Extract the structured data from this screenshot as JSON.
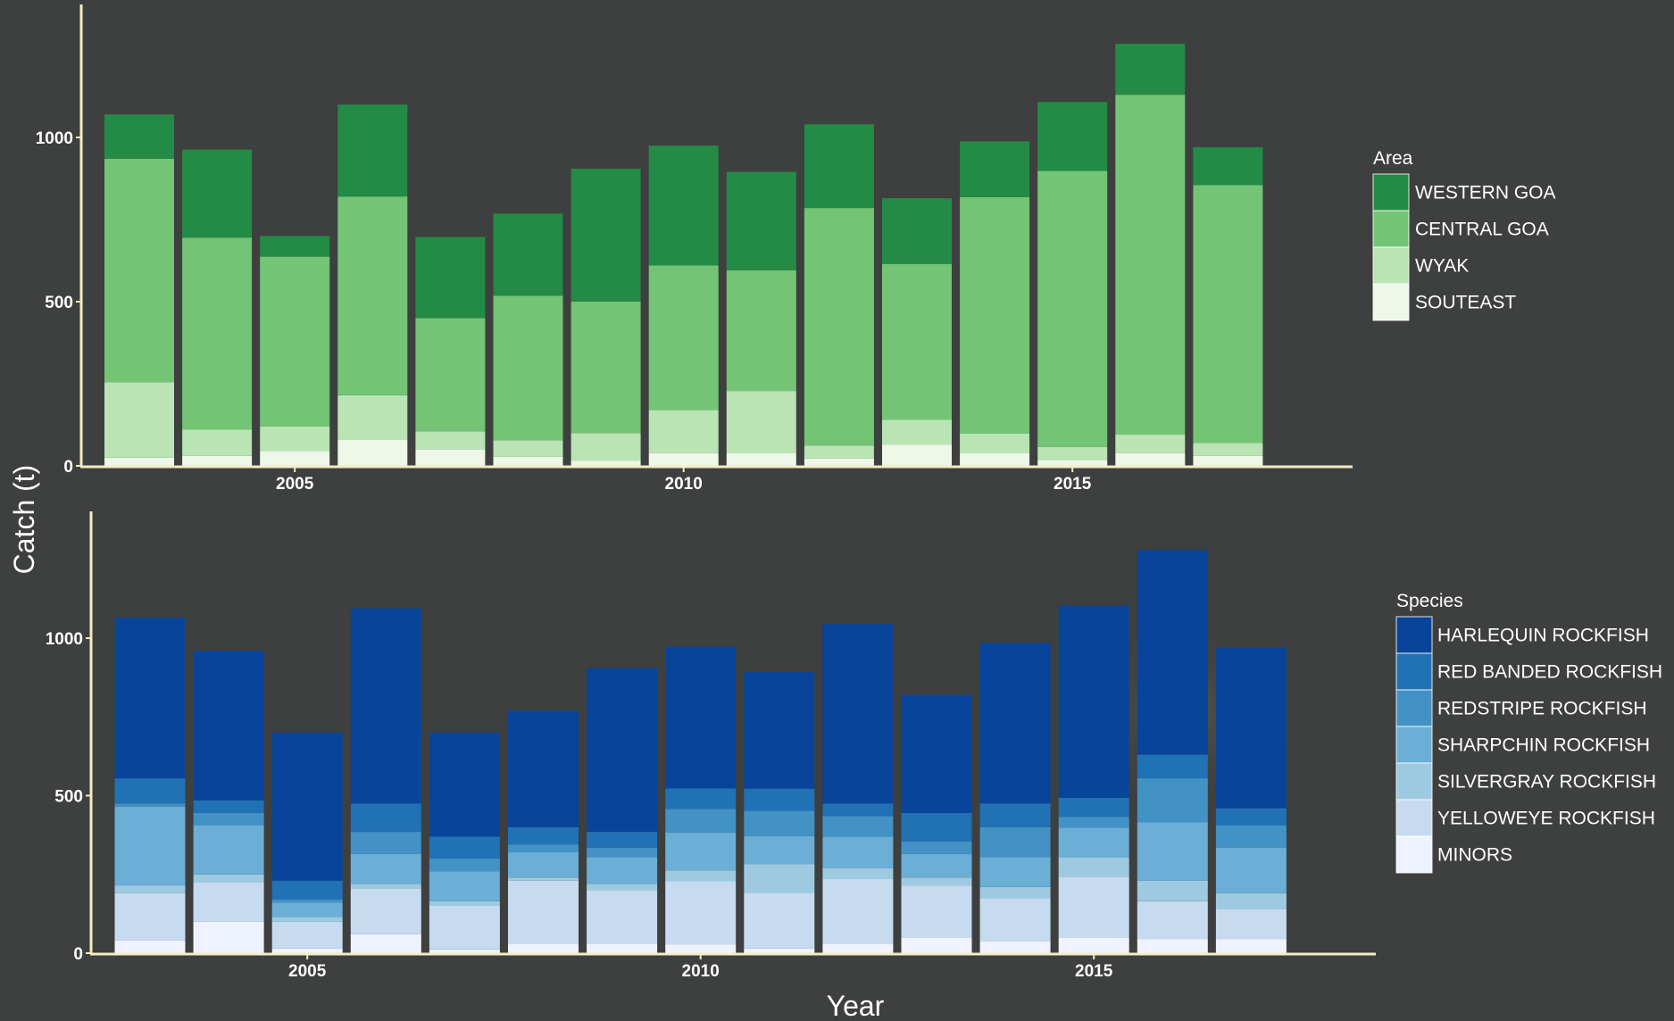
{
  "chart_data": [
    {
      "type": "bar",
      "stacked": true,
      "title": "",
      "xlabel": "",
      "ylabel": "",
      "categories": [
        "2003",
        "2004",
        "2005",
        "2006",
        "2007",
        "2008",
        "2009",
        "2010",
        "2011",
        "2012",
        "2013",
        "2014",
        "2015",
        "2016",
        "2017"
      ],
      "x_ticks": [
        {
          "value": 2005,
          "label": "2005"
        },
        {
          "value": 2010,
          "label": "2010"
        },
        {
          "value": 2015,
          "label": "2015"
        }
      ],
      "y_ticks": [
        {
          "value": 0,
          "label": "0"
        },
        {
          "value": 500,
          "label": "500"
        },
        {
          "value": 1000,
          "label": "1000"
        }
      ],
      "ylim": [
        0,
        1300
      ],
      "legend": {
        "title": "Area",
        "position": "right"
      },
      "series": [
        {
          "name": "SOUTEAST",
          "color": "#edf8e9",
          "values": [
            25,
            30,
            45,
            80,
            50,
            28,
            15,
            40,
            38,
            22,
            65,
            38,
            18,
            40,
            30
          ]
        },
        {
          "name": "WYAK",
          "color": "#bae4b3",
          "values": [
            230,
            80,
            75,
            135,
            55,
            50,
            85,
            130,
            190,
            40,
            75,
            60,
            40,
            55,
            40
          ]
        },
        {
          "name": "CENTRAL GOA",
          "color": "#74c476",
          "values": [
            680,
            585,
            517,
            605,
            345,
            440,
            400,
            440,
            367,
            723,
            475,
            720,
            840,
            1035,
            785
          ]
        },
        {
          "name": "WESTERN GOA",
          "color": "#238b45",
          "values": [
            135,
            268,
            63,
            280,
            247,
            250,
            405,
            365,
            300,
            255,
            200,
            170,
            210,
            155,
            115
          ]
        }
      ]
    },
    {
      "type": "bar",
      "stacked": true,
      "title": "",
      "xlabel": "",
      "ylabel": "",
      "categories": [
        "2003",
        "2004",
        "2005",
        "2006",
        "2007",
        "2008",
        "2009",
        "2010",
        "2011",
        "2012",
        "2013",
        "2014",
        "2015",
        "2016",
        "2017"
      ],
      "x_ticks": [
        {
          "value": 2005,
          "label": "2005"
        },
        {
          "value": 2010,
          "label": "2010"
        },
        {
          "value": 2015,
          "label": "2015"
        }
      ],
      "y_ticks": [
        {
          "value": 0,
          "label": "0"
        },
        {
          "value": 500,
          "label": "500"
        },
        {
          "value": 1000,
          "label": "1000"
        }
      ],
      "ylim": [
        0,
        1300
      ],
      "legend": {
        "title": "Species",
        "position": "right"
      },
      "series": [
        {
          "name": "MINORS",
          "color": "#eff3ff",
          "values": [
            40,
            100,
            15,
            60,
            12,
            30,
            30,
            28,
            15,
            30,
            50,
            38,
            50,
            45,
            45
          ]
        },
        {
          "name": "YELLOWEYE ROCKFISH",
          "color": "#c6dbef",
          "values": [
            150,
            125,
            85,
            145,
            138,
            200,
            170,
            200,
            177,
            205,
            165,
            137,
            193,
            120,
            95
          ]
        },
        {
          "name": "SILVERGRAY ROCKFISH",
          "color": "#9ecae1",
          "values": [
            25,
            25,
            15,
            15,
            15,
            10,
            20,
            35,
            90,
            35,
            25,
            35,
            60,
            65,
            50
          ]
        },
        {
          "name": "SHARPCHIN ROCKFISH",
          "color": "#6baed6",
          "values": [
            250,
            155,
            45,
            95,
            95,
            80,
            85,
            120,
            90,
            100,
            75,
            95,
            95,
            185,
            145
          ]
        },
        {
          "name": "REDSTRIPE ROCKFISH",
          "color": "#4292c6",
          "values": [
            10,
            40,
            10,
            70,
            40,
            25,
            30,
            75,
            80,
            65,
            40,
            95,
            35,
            140,
            70
          ]
        },
        {
          "name": "RED BANDED ROCKFISH",
          "color": "#2171b5",
          "values": [
            80,
            40,
            60,
            90,
            70,
            55,
            50,
            65,
            70,
            40,
            90,
            75,
            60,
            75,
            55
          ]
        },
        {
          "name": "HARLEQUIN ROCKFISH",
          "color": "#08459a",
          "values": [
            510,
            475,
            470,
            620,
            330,
            370,
            520,
            450,
            370,
            570,
            375,
            510,
            610,
            650,
            510
          ]
        }
      ]
    }
  ],
  "y_axis_title": "Catch (t)",
  "x_axis_title": "Year",
  "style": {
    "axis_color": "#f3ecc2",
    "background": "#3e3f3f",
    "text_color": "#ffffff"
  }
}
